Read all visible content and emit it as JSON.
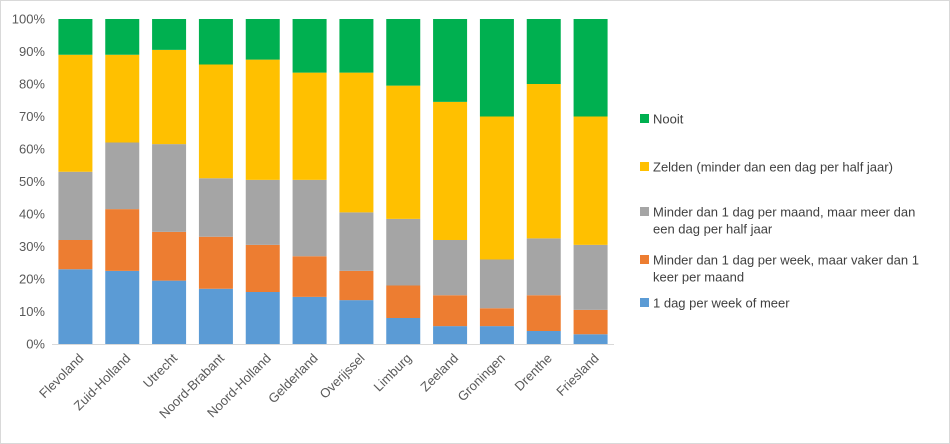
{
  "chart_data": {
    "type": "bar",
    "stacked": true,
    "percent_stacked": true,
    "categories": [
      "Flevoland",
      "Zuid-Holland",
      "Utrecht",
      "Noord-Brabant",
      "Noord-Holland",
      "Gelderland",
      "Overijssel",
      "Limburg",
      "Zeeland",
      "Groningen",
      "Drenthe",
      "Friesland"
    ],
    "series": [
      {
        "name": "1 dag per week of meer",
        "color": "#5b9bd5",
        "values": [
          23,
          22.5,
          19.5,
          17,
          16,
          14.5,
          13.5,
          8,
          5.5,
          5.5,
          4,
          3
        ]
      },
      {
        "name": "Minder dan 1 dag per week, maar vaker dan 1 keer per maand",
        "color": "#ed7d31",
        "values": [
          9,
          19,
          15,
          16,
          14.5,
          12.5,
          9,
          10,
          9.5,
          5.5,
          11,
          7.5
        ]
      },
      {
        "name": "Minder dan 1 dag per maand, maar meer dan een dag per half jaar",
        "color": "#a5a5a5",
        "values": [
          21,
          20.5,
          27,
          18,
          20,
          23.5,
          18,
          20.5,
          17,
          15,
          17.5,
          20
        ]
      },
      {
        "name": "Zelden (minder dan een dag per half jaar)",
        "color": "#ffc000",
        "values": [
          36,
          27,
          29,
          35,
          37,
          33,
          43,
          41,
          42.5,
          44,
          47.5,
          39.5
        ]
      },
      {
        "name": "Nooit",
        "color": "#00b050",
        "values": [
          11,
          11,
          9.5,
          14,
          12.5,
          16.5,
          16.5,
          20.5,
          25.5,
          30,
          20,
          30
        ]
      }
    ],
    "y_ticks": [
      "0%",
      "10%",
      "20%",
      "30%",
      "40%",
      "50%",
      "60%",
      "70%",
      "80%",
      "90%",
      "100%"
    ],
    "ylim": [
      0,
      100
    ],
    "grid": false,
    "legend_position": "right",
    "legend": [
      {
        "lines": [
          "Nooit"
        ],
        "color": "#00b050"
      },
      {
        "lines": [
          "Zelden (minder dan een dag per half jaar)"
        ],
        "color": "#ffc000"
      },
      {
        "lines": [
          "Minder dan 1 dag per maand, maar meer dan",
          "een dag per half jaar"
        ],
        "color": "#a5a5a5"
      },
      {
        "lines": [
          "Minder dan 1 dag per week, maar vaker dan 1",
          "keer per maand"
        ],
        "color": "#ed7d31"
      },
      {
        "lines": [
          "1 dag per week of meer"
        ],
        "color": "#5b9bd5"
      }
    ]
  }
}
